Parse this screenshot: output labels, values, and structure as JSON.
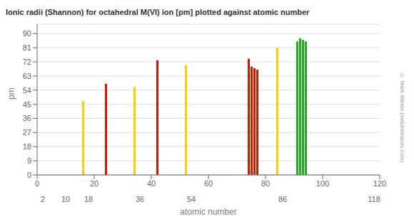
{
  "chart_data": {
    "type": "bar",
    "title": "Ionic radii (Shannon) for octahedral M(VI) ion [pm] plotted against atomic number",
    "x_label": "atomic number",
    "y_label": "pm",
    "x": [
      16,
      24,
      34,
      42,
      52,
      74,
      75,
      76,
      77,
      84,
      91,
      92,
      93,
      94
    ],
    "values": [
      47,
      58,
      56,
      73,
      70,
      74,
      69,
      68,
      67,
      81,
      85,
      87,
      86,
      85
    ],
    "colors": [
      "#ffcc00",
      "#dd1100",
      "#ffcc00",
      "#dd1100",
      "#ffcc00",
      "#dd1100",
      "#dd1100",
      "#dd1100",
      "#dd1100",
      "#ffcc00",
      "#22aa22",
      "#22aa22",
      "#22aa22",
      "#22aa22"
    ],
    "xlim": [
      0,
      120
    ],
    "xticks": [
      0,
      20,
      40,
      60,
      80,
      100,
      120
    ],
    "x2ticks": [
      2,
      10,
      18,
      36,
      54,
      86,
      118
    ],
    "ylim": [
      0,
      96
    ],
    "yticks": [
      0,
      9,
      18,
      27,
      36,
      45,
      54,
      63,
      72,
      81,
      90
    ],
    "grid": true,
    "annotations": [
      "© Mark Winter (webelements.com)"
    ]
  }
}
